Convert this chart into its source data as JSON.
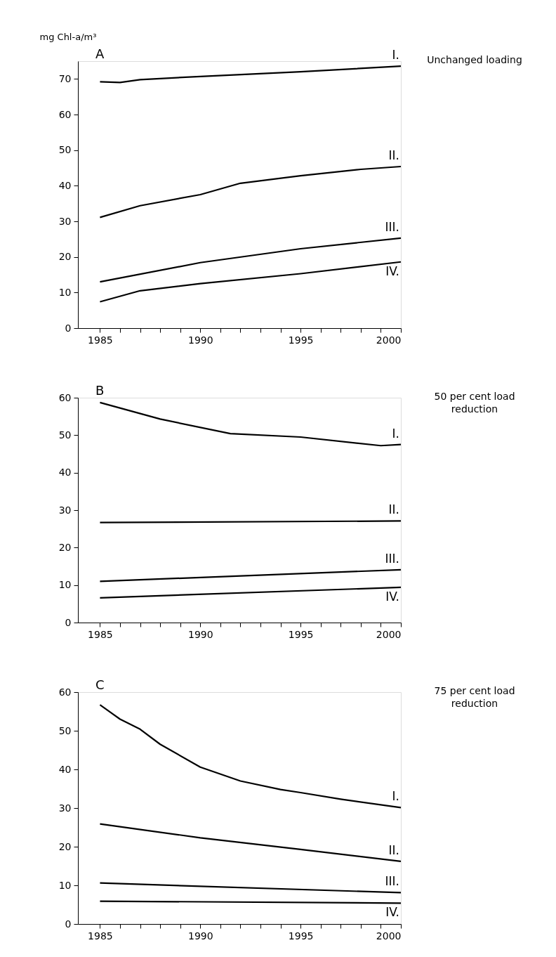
{
  "chart_data": [
    {
      "type": "line",
      "title": "A",
      "ylabel": "mg Chl-a/m³",
      "annotations": [
        "Unchanged loading"
      ],
      "xlim": [
        1983.9,
        2000
      ],
      "ylim": [
        0,
        75
      ],
      "xticks": [
        1985,
        {
          "value": 1986,
          "label": null
        },
        {
          "value": 1987,
          "label": null
        },
        {
          "value": 1988,
          "label": null
        },
        {
          "value": 1989,
          "label": null
        },
        1990,
        {
          "value": 1991,
          "label": null
        },
        {
          "value": 1992,
          "label": null
        },
        {
          "value": 1993,
          "label": null
        },
        {
          "value": 1994,
          "label": null
        },
        1995,
        {
          "value": 1996,
          "label": null
        },
        {
          "value": 1997,
          "label": null
        },
        {
          "value": 1998,
          "label": null
        },
        {
          "value": 1999,
          "label": null
        },
        2000
      ],
      "yticks": [
        0,
        10,
        20,
        30,
        40,
        50,
        60,
        70
      ],
      "grid": false,
      "legend": false,
      "marker": "none",
      "line_style": "solid",
      "series": [
        {
          "name": "I.",
          "color": "#000000",
          "x": [
            1985,
            1986,
            1987,
            1990,
            1995,
            2000
          ],
          "values": [
            69.2,
            69,
            69.8,
            70.7,
            72,
            73.6
          ]
        },
        {
          "name": "II.",
          "color": "#000000",
          "x": [
            1985,
            1987,
            1990,
            1992,
            1995,
            1998,
            2000
          ],
          "values": [
            31.1,
            34.4,
            37.5,
            40.7,
            42.8,
            44.6,
            45.4
          ]
        },
        {
          "name": "III.",
          "color": "#000000",
          "x": [
            1985,
            1990,
            1995,
            2000
          ],
          "values": [
            13,
            18.4,
            22.3,
            25.3
          ]
        },
        {
          "name": "IV.",
          "color": "#000000",
          "x": [
            1985,
            1987,
            1990,
            1995,
            2000
          ],
          "values": [
            7.4,
            10.5,
            12.5,
            15.3,
            18.6
          ]
        }
      ]
    },
    {
      "type": "line",
      "title": "B",
      "annotations": [
        "50 per cent load reduction"
      ],
      "xlim": [
        1983.9,
        2000
      ],
      "ylim": [
        0,
        60
      ],
      "xticks": [
        1985,
        {
          "value": 1986,
          "label": null
        },
        {
          "value": 1987,
          "label": null
        },
        {
          "value": 1988,
          "label": null
        },
        {
          "value": 1989,
          "label": null
        },
        1990,
        {
          "value": 1991,
          "label": null
        },
        {
          "value": 1992,
          "label": null
        },
        {
          "value": 1993,
          "label": null
        },
        {
          "value": 1994,
          "label": null
        },
        1995,
        {
          "value": 1996,
          "label": null
        },
        {
          "value": 1997,
          "label": null
        },
        {
          "value": 1998,
          "label": null
        },
        {
          "value": 1999,
          "label": null
        },
        2000
      ],
      "yticks": [
        0,
        10,
        20,
        30,
        40,
        50,
        60
      ],
      "grid": false,
      "legend": false,
      "marker": "none",
      "line_style": "solid",
      "series": [
        {
          "name": "I.",
          "color": "#000000",
          "x": [
            1985,
            1988,
            1991.5,
            1995,
            1999,
            2000
          ],
          "values": [
            58.7,
            54.3,
            50.4,
            49.5,
            47.2,
            47.5
          ]
        },
        {
          "name": "II.",
          "color": "#000000",
          "x": [
            1985,
            2000
          ],
          "values": [
            26.7,
            27.1
          ]
        },
        {
          "name": "III.",
          "color": "#000000",
          "x": [
            1985,
            2000
          ],
          "values": [
            11,
            14.1
          ]
        },
        {
          "name": "IV.",
          "color": "#000000",
          "x": [
            1985,
            2000
          ],
          "values": [
            6.6,
            9.4
          ]
        }
      ]
    },
    {
      "type": "line",
      "title": "C",
      "annotations": [
        "75 per cent load reduction"
      ],
      "xlim": [
        1983.9,
        2000
      ],
      "ylim": [
        0,
        60
      ],
      "xticks": [
        1985,
        {
          "value": 1986,
          "label": null
        },
        {
          "value": 1987,
          "label": null
        },
        {
          "value": 1988,
          "label": null
        },
        {
          "value": 1989,
          "label": null
        },
        1990,
        {
          "value": 1991,
          "label": null
        },
        {
          "value": 1992,
          "label": null
        },
        {
          "value": 1993,
          "label": null
        },
        {
          "value": 1994,
          "label": null
        },
        1995,
        {
          "value": 1996,
          "label": null
        },
        {
          "value": 1997,
          "label": null
        },
        {
          "value": 1998,
          "label": null
        },
        {
          "value": 1999,
          "label": null
        },
        2000
      ],
      "yticks": [
        0,
        10,
        20,
        30,
        40,
        50,
        60
      ],
      "grid": false,
      "legend": false,
      "marker": "none",
      "line_style": "solid",
      "series": [
        {
          "name": "I.",
          "color": "#000000",
          "x": [
            1985,
            1986,
            1987,
            1988,
            1990,
            1992,
            1994,
            1995,
            1997,
            2000
          ],
          "values": [
            56.7,
            53,
            50.4,
            46.5,
            40.6,
            37,
            34.8,
            34,
            32.3,
            30.1
          ]
        },
        {
          "name": "II.",
          "color": "#000000",
          "x": [
            1985,
            1990,
            1995,
            2000
          ],
          "values": [
            25.9,
            22.3,
            19.3,
            16.2
          ]
        },
        {
          "name": "III.",
          "color": "#000000",
          "x": [
            1985,
            2000
          ],
          "values": [
            10.6,
            8.1
          ]
        },
        {
          "name": "IV.",
          "color": "#000000",
          "x": [
            1985,
            2000
          ],
          "values": [
            5.9,
            5.4
          ]
        }
      ]
    }
  ]
}
